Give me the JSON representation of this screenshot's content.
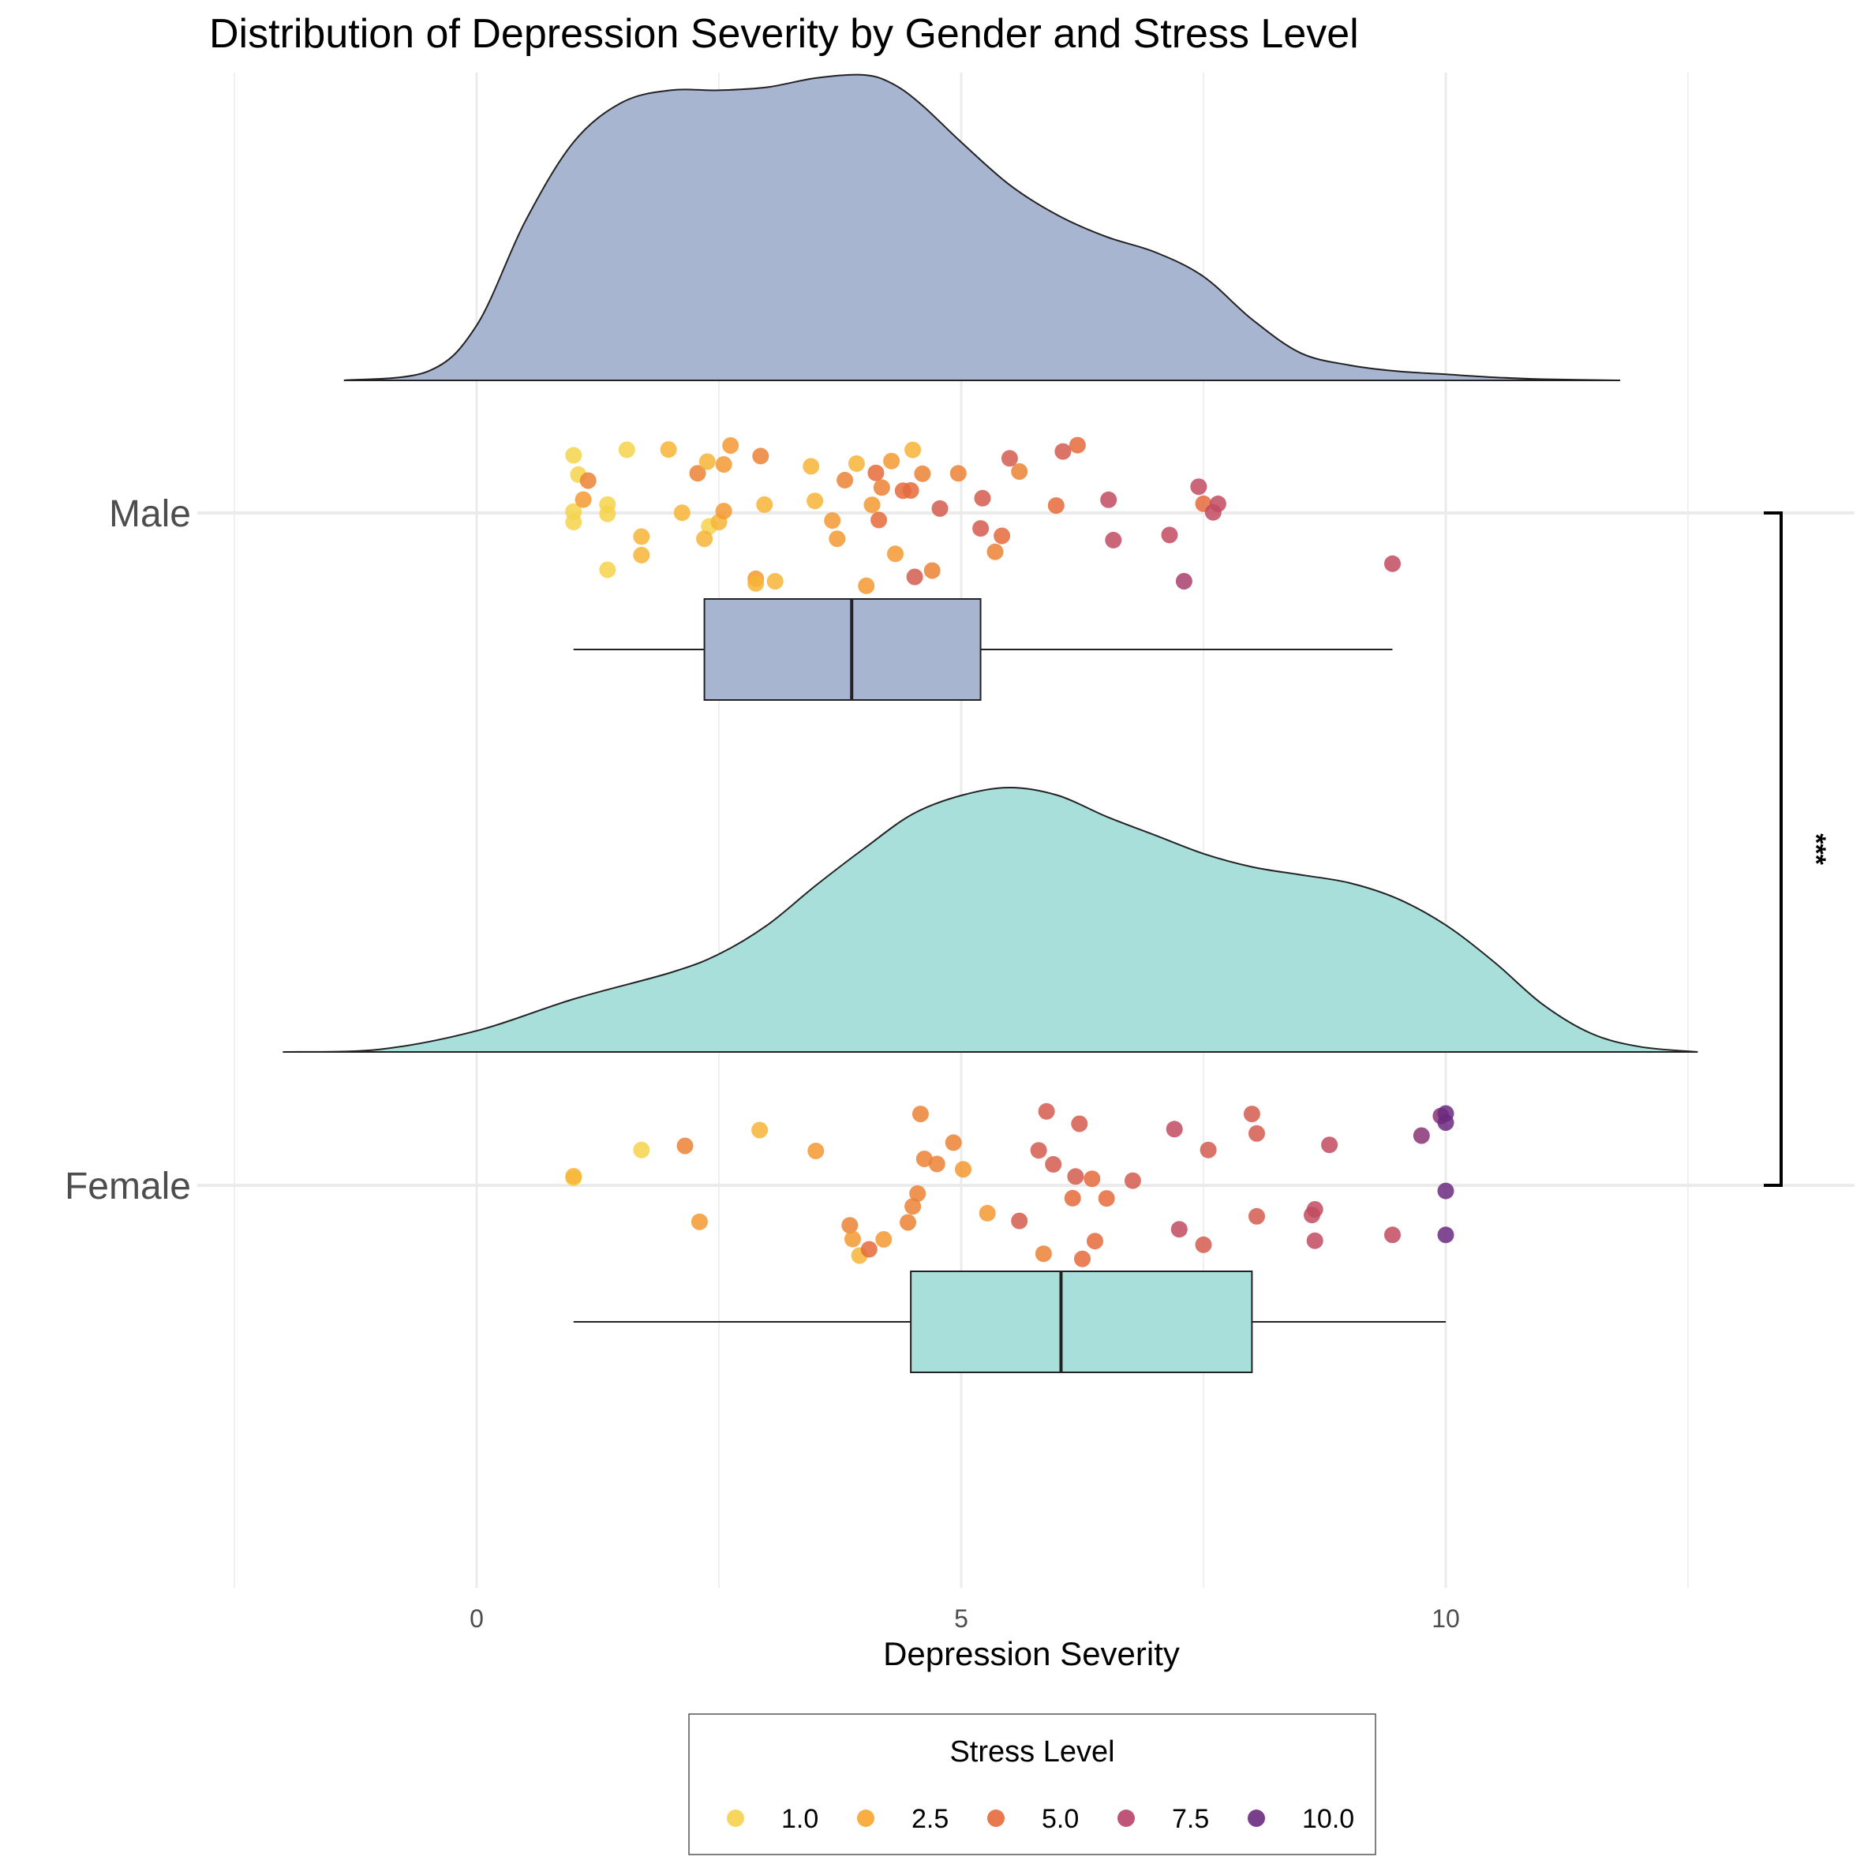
{
  "chart_data": {
    "type": "raincloud",
    "title": "Distribution of Depression Severity by Gender and Stress Level",
    "xlabel": "Depression Severity",
    "ylabel": "",
    "xlim": [
      -2.5,
      14.3
    ],
    "xticks": [
      0,
      5,
      10
    ],
    "x_tick_labels": [
      "0",
      "5",
      "10"
    ],
    "grid": true,
    "groups": [
      "Male",
      "Female"
    ],
    "significance": {
      "between": [
        "Male",
        "Female"
      ],
      "label": "***"
    },
    "legend": {
      "title": "Stress Level",
      "position": "bottom",
      "items": [
        {
          "label": "1.0",
          "color": "#f6d24b"
        },
        {
          "label": "2.5",
          "color": "#f7a52d"
        },
        {
          "label": "5.0",
          "color": "#e56a3b"
        },
        {
          "label": "7.5",
          "color": "#b9436b"
        },
        {
          "label": "10.0",
          "color": "#6b2a7f"
        }
      ]
    },
    "series": [
      {
        "name": "Male",
        "fill": "#a7b5d1",
        "density": {
          "x": [
            -1.37,
            -0.5,
            0,
            0.5,
            1.0,
            1.5,
            2.0,
            2.5,
            3.0,
            3.5,
            4.0,
            4.3,
            4.6,
            5.0,
            5.5,
            6.0,
            6.5,
            7.0,
            7.5,
            8.0,
            8.5,
            9.0,
            9.5,
            10.0,
            10.5,
            11.0,
            11.8
          ],
          "y": [
            0.0,
            0.03,
            0.18,
            0.52,
            0.78,
            0.91,
            0.95,
            0.95,
            0.96,
            0.99,
            1.0,
            0.97,
            0.9,
            0.78,
            0.64,
            0.54,
            0.47,
            0.42,
            0.34,
            0.2,
            0.09,
            0.05,
            0.03,
            0.02,
            0.01,
            0.004,
            0.0
          ]
        },
        "box": {
          "whisker_low": 1.0,
          "q1": 2.35,
          "median": 3.87,
          "q3": 5.2,
          "whisker_high": 9.45
        },
        "points": [
          {
            "x": 1.0,
            "stress": 1
          },
          {
            "x": 1.0,
            "stress": 1
          },
          {
            "x": 1.0,
            "stress": 1
          },
          {
            "x": 1.05,
            "stress": 1
          },
          {
            "x": 1.35,
            "stress": 1
          },
          {
            "x": 1.35,
            "stress": 1
          },
          {
            "x": 1.55,
            "stress": 1
          },
          {
            "x": 1.35,
            "stress": 1
          },
          {
            "x": 2.4,
            "stress": 1
          },
          {
            "x": 1.1,
            "stress": 3
          },
          {
            "x": 1.15,
            "stress": 4
          },
          {
            "x": 1.7,
            "stress": 2
          },
          {
            "x": 1.7,
            "stress": 2
          },
          {
            "x": 1.98,
            "stress": 2
          },
          {
            "x": 2.12,
            "stress": 2
          },
          {
            "x": 2.28,
            "stress": 4
          },
          {
            "x": 2.35,
            "stress": 2
          },
          {
            "x": 2.38,
            "stress": 2
          },
          {
            "x": 2.5,
            "stress": 2
          },
          {
            "x": 2.55,
            "stress": 3
          },
          {
            "x": 2.55,
            "stress": 3
          },
          {
            "x": 2.62,
            "stress": 3
          },
          {
            "x": 2.88,
            "stress": 3
          },
          {
            "x": 2.88,
            "stress": 2
          },
          {
            "x": 2.93,
            "stress": 4
          },
          {
            "x": 2.97,
            "stress": 2
          },
          {
            "x": 3.08,
            "stress": 2
          },
          {
            "x": 3.45,
            "stress": 2
          },
          {
            "x": 3.49,
            "stress": 2
          },
          {
            "x": 3.67,
            "stress": 3
          },
          {
            "x": 3.72,
            "stress": 3
          },
          {
            "x": 3.8,
            "stress": 4
          },
          {
            "x": 3.92,
            "stress": 2
          },
          {
            "x": 4.02,
            "stress": 3
          },
          {
            "x": 4.08,
            "stress": 3
          },
          {
            "x": 4.12,
            "stress": 5
          },
          {
            "x": 4.15,
            "stress": 5
          },
          {
            "x": 4.18,
            "stress": 4
          },
          {
            "x": 4.28,
            "stress": 3
          },
          {
            "x": 4.32,
            "stress": 3
          },
          {
            "x": 4.4,
            "stress": 5
          },
          {
            "x": 4.48,
            "stress": 5
          },
          {
            "x": 4.5,
            "stress": 2
          },
          {
            "x": 4.52,
            "stress": 6
          },
          {
            "x": 4.6,
            "stress": 4
          },
          {
            "x": 4.7,
            "stress": 4
          },
          {
            "x": 4.78,
            "stress": 6
          },
          {
            "x": 4.97,
            "stress": 4
          },
          {
            "x": 5.2,
            "stress": 6
          },
          {
            "x": 5.22,
            "stress": 6
          },
          {
            "x": 5.35,
            "stress": 4
          },
          {
            "x": 5.42,
            "stress": 5
          },
          {
            "x": 5.5,
            "stress": 6
          },
          {
            "x": 5.6,
            "stress": 4
          },
          {
            "x": 5.98,
            "stress": 5
          },
          {
            "x": 6.05,
            "stress": 6
          },
          {
            "x": 6.2,
            "stress": 5
          },
          {
            "x": 6.52,
            "stress": 7
          },
          {
            "x": 6.57,
            "stress": 7
          },
          {
            "x": 7.15,
            "stress": 7
          },
          {
            "x": 7.3,
            "stress": 8
          },
          {
            "x": 7.45,
            "stress": 7
          },
          {
            "x": 7.5,
            "stress": 5
          },
          {
            "x": 7.6,
            "stress": 7
          },
          {
            "x": 7.65,
            "stress": 7
          },
          {
            "x": 9.45,
            "stress": 7
          }
        ]
      },
      {
        "name": "Female",
        "fill": "#a9dfdb",
        "density": {
          "x": [
            -2.0,
            -1.0,
            0,
            1.0,
            2.0,
            2.5,
            3.0,
            3.5,
            4.0,
            4.5,
            5.0,
            5.5,
            6.0,
            6.5,
            7.0,
            7.5,
            8.0,
            8.5,
            9.0,
            9.5,
            10.0,
            10.5,
            11.0,
            11.5,
            12.0,
            12.6
          ],
          "y": [
            0.0,
            0.01,
            0.08,
            0.2,
            0.3,
            0.37,
            0.48,
            0.63,
            0.77,
            0.9,
            0.97,
            1.0,
            0.97,
            0.89,
            0.82,
            0.75,
            0.7,
            0.67,
            0.64,
            0.58,
            0.48,
            0.34,
            0.18,
            0.07,
            0.02,
            0.0
          ]
        },
        "box": {
          "whisker_low": 1.0,
          "q1": 4.48,
          "median": 6.03,
          "q3": 8.0,
          "whisker_high": 10.0
        },
        "points": [
          {
            "x": 1.0,
            "stress": 1
          },
          {
            "x": 1.0,
            "stress": 2
          },
          {
            "x": 1.7,
            "stress": 1
          },
          {
            "x": 2.15,
            "stress": 4
          },
          {
            "x": 2.3,
            "stress": 3
          },
          {
            "x": 2.92,
            "stress": 2
          },
          {
            "x": 3.5,
            "stress": 3
          },
          {
            "x": 3.85,
            "stress": 4
          },
          {
            "x": 3.88,
            "stress": 3
          },
          {
            "x": 3.95,
            "stress": 2
          },
          {
            "x": 4.05,
            "stress": 5
          },
          {
            "x": 4.2,
            "stress": 3
          },
          {
            "x": 4.45,
            "stress": 4
          },
          {
            "x": 4.5,
            "stress": 4
          },
          {
            "x": 4.55,
            "stress": 4
          },
          {
            "x": 4.58,
            "stress": 4
          },
          {
            "x": 4.62,
            "stress": 4
          },
          {
            "x": 4.75,
            "stress": 4
          },
          {
            "x": 4.92,
            "stress": 4
          },
          {
            "x": 5.02,
            "stress": 3
          },
          {
            "x": 5.27,
            "stress": 3
          },
          {
            "x": 5.6,
            "stress": 6
          },
          {
            "x": 5.8,
            "stress": 6
          },
          {
            "x": 5.85,
            "stress": 4
          },
          {
            "x": 5.88,
            "stress": 6
          },
          {
            "x": 5.95,
            "stress": 6
          },
          {
            "x": 6.15,
            "stress": 5
          },
          {
            "x": 6.18,
            "stress": 6
          },
          {
            "x": 6.22,
            "stress": 6
          },
          {
            "x": 6.25,
            "stress": 5
          },
          {
            "x": 6.35,
            "stress": 5
          },
          {
            "x": 6.38,
            "stress": 5
          },
          {
            "x": 6.5,
            "stress": 5
          },
          {
            "x": 6.77,
            "stress": 6
          },
          {
            "x": 7.2,
            "stress": 7
          },
          {
            "x": 7.25,
            "stress": 7
          },
          {
            "x": 7.5,
            "stress": 6
          },
          {
            "x": 7.55,
            "stress": 6
          },
          {
            "x": 8.0,
            "stress": 6
          },
          {
            "x": 8.05,
            "stress": 6
          },
          {
            "x": 8.05,
            "stress": 6
          },
          {
            "x": 8.62,
            "stress": 7
          },
          {
            "x": 8.65,
            "stress": 7
          },
          {
            "x": 8.65,
            "stress": 7
          },
          {
            "x": 8.8,
            "stress": 7
          },
          {
            "x": 9.45,
            "stress": 7
          },
          {
            "x": 9.75,
            "stress": 9
          },
          {
            "x": 9.95,
            "stress": 9
          },
          {
            "x": 10.0,
            "stress": 10
          },
          {
            "x": 10.0,
            "stress": 10
          },
          {
            "x": 10.0,
            "stress": 10
          },
          {
            "x": 10.0,
            "stress": 10
          }
        ]
      }
    ]
  }
}
